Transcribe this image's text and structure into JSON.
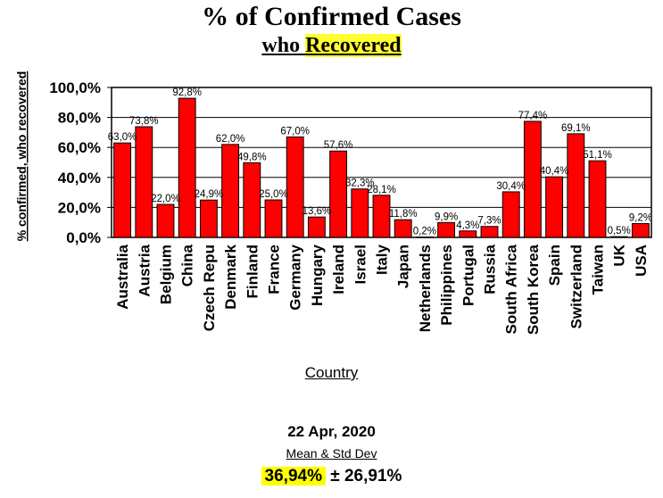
{
  "title": "% of Confirmed Cases",
  "subtitle_prefix": "who ",
  "subtitle_highlight": "Recovered",
  "date": "22 Apr, 2020",
  "stats_label": "Mean & Std Dev",
  "stats_mean": "36,94%",
  "stats_std": "± 26,91%",
  "colors": {
    "bar": "#ff0000",
    "highlight": "#ffff00"
  },
  "chart_data": {
    "type": "bar",
    "title": "% of Confirmed Cases who Recovered",
    "xlabel": "Country",
    "ylabel": "% confirmed, who recovered",
    "ylim": [
      0,
      100
    ],
    "yticks": [
      "0,0%",
      "20,0%",
      "40,0%",
      "60,0%",
      "80,0%",
      "100,0%"
    ],
    "grid": true,
    "categories": [
      "Australia",
      "Austria",
      "Belgium",
      "China",
      "Czech Repu",
      "Denmark",
      "Finland",
      "France",
      "Germany",
      "Hungary",
      "Ireland",
      "Israel",
      "Italy",
      "Japan",
      "Netherlands",
      "Philippines",
      "Portugal",
      "Russia",
      "South Africa",
      "South Korea",
      "Spain",
      "Switzerland",
      "Taiwan",
      "UK",
      "USA"
    ],
    "values": [
      63.0,
      73.8,
      22.0,
      92.8,
      24.9,
      62.0,
      49.8,
      25.0,
      67.0,
      13.6,
      57.6,
      32.3,
      28.1,
      11.8,
      0.2,
      9.9,
      4.3,
      7.3,
      30.4,
      77.4,
      40.4,
      69.1,
      51.1,
      0.5,
      9.2
    ],
    "labels": [
      "63,0%",
      "73,8%",
      "22,0%",
      "92,8%",
      "24,9%",
      "62,0%",
      "49,8%",
      "25,0%",
      "67,0%",
      "13,6%",
      "57,6%",
      "32,3%",
      "28,1%",
      "11,8%",
      "0,2%",
      "9,9%",
      "4,3%",
      "7,3%",
      "30,4%",
      "77,4%",
      "40,4%",
      "69,1%",
      "51,1%",
      "0,5%",
      "9,2%"
    ]
  }
}
